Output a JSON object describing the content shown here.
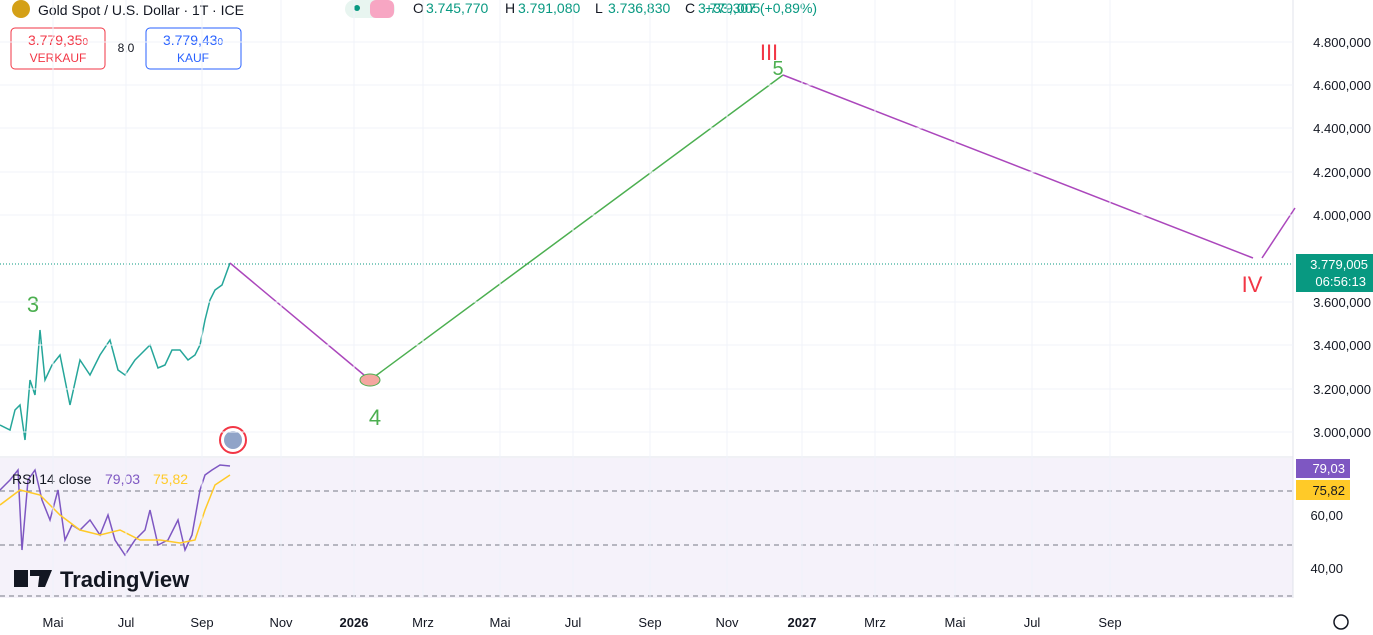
{
  "header": {
    "symbol": "Gold Spot / U.S. Dollar · 1T · ICE",
    "ohlc": [
      {
        "key": "O",
        "value": "3.745,770"
      },
      {
        "key": "H",
        "value": "3.791,080"
      },
      {
        "key": "L",
        "value": "3.736,830"
      },
      {
        "key": "C",
        "value": "3.779,005"
      }
    ],
    "change": "+33,307 (+0,89%)"
  },
  "trade": {
    "sell_price": "3.779,35",
    "sell_sup": "0",
    "sell_label": "VERKAUF",
    "spread": "8,0",
    "buy_price": "3.779,43",
    "buy_sup": "0",
    "buy_label": "KAUF"
  },
  "price_axis": [
    "4.800,000",
    "4.600,000",
    "4.400,000",
    "4.200,000",
    "4.000,000",
    "3.600,000",
    "3.400,000",
    "3.200,000",
    "3.000,000"
  ],
  "current_price": {
    "price": "3.779,005",
    "countdown": "06:56:13"
  },
  "waves": [
    "3",
    "4",
    "5",
    "III",
    "IV"
  ],
  "rsi": {
    "title": "RSI 14 close",
    "value": "79,03",
    "ma": "75,82",
    "axis": [
      "60,00",
      "40,00"
    ]
  },
  "time_axis": [
    "Mai",
    "Jul",
    "Sep",
    "Nov",
    "2026",
    "Mrz",
    "Mai",
    "Jul",
    "Sep",
    "Nov",
    "2027",
    "Mrz",
    "Mai",
    "Jul",
    "Sep"
  ],
  "brand": "TradingView"
}
